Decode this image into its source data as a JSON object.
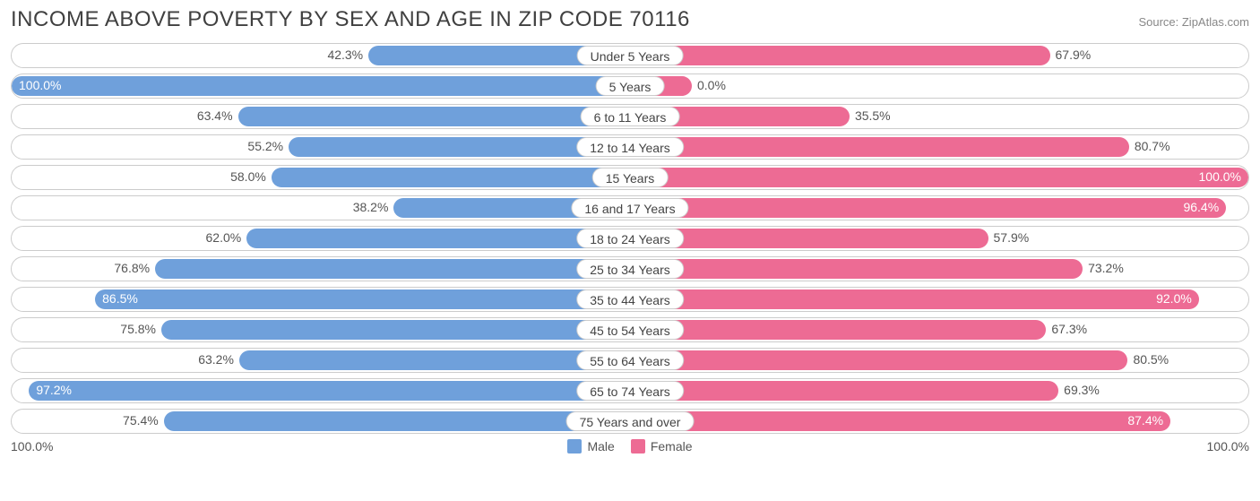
{
  "title": "INCOME ABOVE POVERTY BY SEX AND AGE IN ZIP CODE 70116",
  "source": "Source: ZipAtlas.com",
  "chart": {
    "type": "diverging-bar",
    "male_color": "#6fa0db",
    "female_color": "#ed6b94",
    "track_border_color": "#cccccc",
    "background_color": "#ffffff",
    "label_fontsize": 14,
    "title_fontsize": 24,
    "title_color": "#404040",
    "source_color": "#888888",
    "bar_radius": 12,
    "inside_threshold": 18,
    "rows": [
      {
        "category": "Under 5 Years",
        "male": 42.3,
        "female": 67.9
      },
      {
        "category": "5 Years",
        "male": 100.0,
        "female": 0.0
      },
      {
        "category": "6 to 11 Years",
        "male": 63.4,
        "female": 35.5
      },
      {
        "category": "12 to 14 Years",
        "male": 55.2,
        "female": 80.7
      },
      {
        "category": "15 Years",
        "male": 58.0,
        "female": 100.0
      },
      {
        "category": "16 and 17 Years",
        "male": 38.2,
        "female": 96.4
      },
      {
        "category": "18 to 24 Years",
        "male": 62.0,
        "female": 57.9
      },
      {
        "category": "25 to 34 Years",
        "male": 76.8,
        "female": 73.2
      },
      {
        "category": "35 to 44 Years",
        "male": 86.5,
        "female": 92.0
      },
      {
        "category": "45 to 54 Years",
        "male": 75.8,
        "female": 67.3
      },
      {
        "category": "55 to 64 Years",
        "male": 63.2,
        "female": 80.5
      },
      {
        "category": "65 to 74 Years",
        "male": 97.2,
        "female": 69.3
      },
      {
        "category": "75 Years and over",
        "male": 75.4,
        "female": 87.4
      }
    ],
    "axis_left_label": "100.0%",
    "axis_right_label": "100.0%",
    "legend": {
      "male_label": "Male",
      "female_label": "Female"
    }
  }
}
